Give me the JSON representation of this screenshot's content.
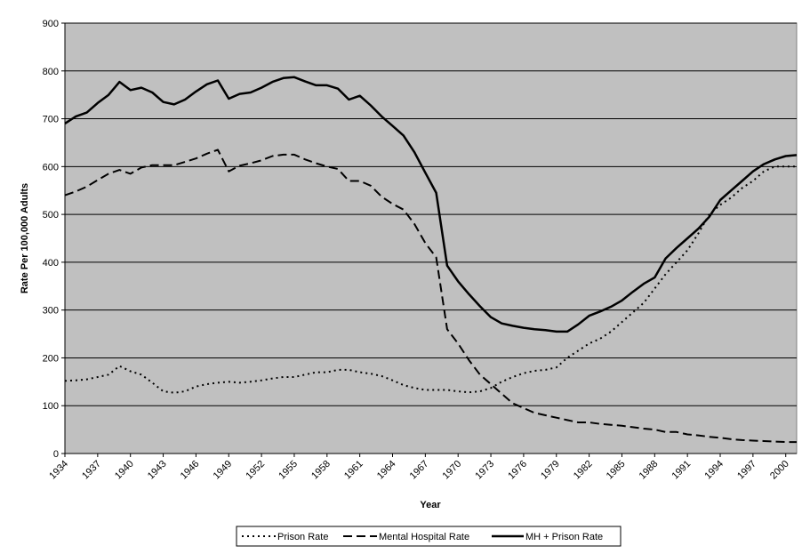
{
  "chart_data": {
    "type": "line",
    "title": "",
    "xlabel": "Year",
    "ylabel": "Rate Per 100,000 Adults",
    "ylim": [
      0,
      900
    ],
    "yticks": [
      "0",
      "100",
      "200",
      "300",
      "400",
      "500",
      "600",
      "700",
      "800",
      "900"
    ],
    "xlim": [
      1934,
      2001
    ],
    "xticks": [
      "1934",
      "1937",
      "1940",
      "1943",
      "1946",
      "1949",
      "1952",
      "1955",
      "1958",
      "1961",
      "1964",
      "1967",
      "1970",
      "1973",
      "1976",
      "1979",
      "1982",
      "1985",
      "1988",
      "1991",
      "1994",
      "1997",
      "2000"
    ],
    "grid": true,
    "legend_position": "bottom",
    "colors": {
      "plot_background": "#c0c0c0",
      "line": "#000000",
      "grid": "#000000"
    },
    "x": [
      1934,
      1935,
      1936,
      1937,
      1938,
      1939,
      1940,
      1941,
      1942,
      1943,
      1944,
      1945,
      1946,
      1947,
      1948,
      1949,
      1950,
      1951,
      1952,
      1953,
      1954,
      1955,
      1956,
      1957,
      1958,
      1959,
      1960,
      1961,
      1962,
      1963,
      1964,
      1965,
      1966,
      1967,
      1968,
      1969,
      1970,
      1971,
      1972,
      1973,
      1974,
      1975,
      1976,
      1977,
      1978,
      1979,
      1980,
      1981,
      1982,
      1983,
      1984,
      1985,
      1986,
      1987,
      1988,
      1989,
      1990,
      1991,
      1992,
      1993,
      1994,
      1995,
      1996,
      1997,
      1998,
      1999,
      2000,
      2001
    ],
    "series": [
      {
        "name": "Prison Rate",
        "style": "dotted",
        "values": [
          152,
          153,
          155,
          160,
          165,
          183,
          172,
          165,
          148,
          130,
          127,
          130,
          140,
          145,
          148,
          150,
          148,
          150,
          153,
          157,
          160,
          160,
          165,
          170,
          170,
          175,
          175,
          170,
          167,
          162,
          153,
          143,
          137,
          133,
          133,
          133,
          130,
          128,
          130,
          137,
          150,
          160,
          168,
          173,
          175,
          180,
          200,
          215,
          230,
          240,
          255,
          275,
          295,
          315,
          345,
          375,
          400,
          425,
          460,
          500,
          520,
          535,
          555,
          570,
          590,
          600,
          600,
          600
        ]
      },
      {
        "name": "Mental Hospital Rate",
        "style": "dashed",
        "values": [
          540,
          548,
          558,
          572,
          585,
          593,
          585,
          598,
          603,
          603,
          603,
          610,
          617,
          627,
          635,
          590,
          602,
          607,
          613,
          622,
          625,
          625,
          615,
          607,
          600,
          595,
          570,
          570,
          560,
          537,
          522,
          510,
          480,
          440,
          410,
          260,
          230,
          195,
          165,
          145,
          125,
          105,
          95,
          85,
          80,
          75,
          70,
          65,
          65,
          62,
          60,
          58,
          55,
          52,
          50,
          45,
          45,
          40,
          38,
          35,
          33,
          30,
          28,
          27,
          26,
          25,
          24,
          24
        ]
      },
      {
        "name": "MH + Prison Rate",
        "style": "solid",
        "values": [
          690,
          705,
          713,
          733,
          750,
          777,
          760,
          765,
          755,
          735,
          730,
          740,
          757,
          772,
          780,
          742,
          752,
          755,
          765,
          777,
          785,
          787,
          778,
          770,
          770,
          763,
          740,
          748,
          728,
          705,
          685,
          665,
          630,
          587,
          545,
          393,
          360,
          333,
          308,
          285,
          272,
          267,
          263,
          260,
          258,
          255,
          255,
          270,
          288,
          297,
          307,
          320,
          338,
          355,
          368,
          408,
          430,
          450,
          470,
          495,
          530,
          550,
          570,
          590,
          605,
          615,
          622,
          624
        ]
      }
    ]
  }
}
